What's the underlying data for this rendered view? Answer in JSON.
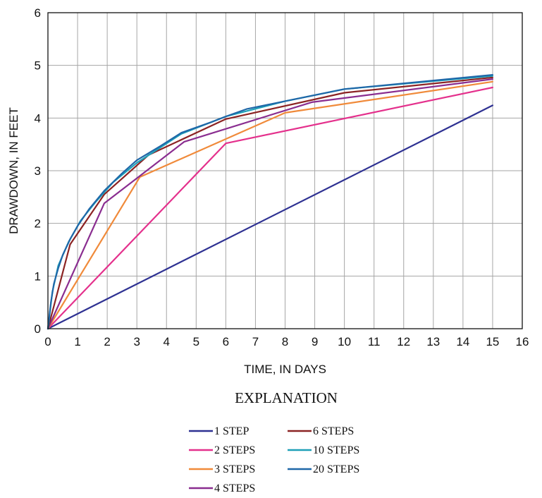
{
  "chart_data": {
    "type": "line",
    "title": "",
    "xlabel": "TIME, IN DAYS",
    "ylabel": "DRAWDOWN, IN FEET",
    "xlim": [
      0,
      16
    ],
    "ylim": [
      0,
      6
    ],
    "x_ticks": [
      0,
      1,
      2,
      3,
      4,
      5,
      6,
      7,
      8,
      9,
      10,
      11,
      12,
      13,
      14,
      15,
      16
    ],
    "y_ticks": [
      0,
      1,
      2,
      3,
      4,
      5,
      6
    ],
    "grid": true,
    "legend_title": "EXPLANATION",
    "legend_placement": "bottom",
    "series": [
      {
        "name": "1 STEP",
        "color": "#2e3192",
        "points": [
          [
            0,
            0
          ],
          [
            15,
            4.24
          ]
        ]
      },
      {
        "name": "2 STEPS",
        "color": "#e4308c",
        "points": [
          [
            0,
            0
          ],
          [
            6,
            3.52
          ],
          [
            15,
            4.58
          ]
        ]
      },
      {
        "name": "3 STEPS",
        "color": "#f08a3a",
        "points": [
          [
            0,
            0
          ],
          [
            3.1,
            2.88
          ],
          [
            8,
            4.1
          ],
          [
            15,
            4.69
          ]
        ]
      },
      {
        "name": "4 STEPS",
        "color": "#8a2d90",
        "points": [
          [
            0,
            0
          ],
          [
            1.9,
            2.38
          ],
          [
            4.6,
            3.55
          ],
          [
            8.9,
            4.3
          ],
          [
            15,
            4.74
          ]
        ]
      },
      {
        "name": "6 STEPS",
        "color": "#8b2323",
        "points": [
          [
            0,
            0
          ],
          [
            0.75,
            1.6
          ],
          [
            1.9,
            2.55
          ],
          [
            3.4,
            3.3
          ],
          [
            6,
            3.98
          ],
          [
            10,
            4.48
          ],
          [
            15,
            4.77
          ]
        ]
      },
      {
        "name": "10 STEPS",
        "color": "#1ea0b8",
        "points": [
          [
            0,
            0
          ],
          [
            0.15,
            0.7
          ],
          [
            0.35,
            1.2
          ],
          [
            0.7,
            1.65
          ],
          [
            1.1,
            2.05
          ],
          [
            1.6,
            2.4
          ],
          [
            2.2,
            2.78
          ],
          [
            3,
            3.15
          ],
          [
            4.5,
            3.7
          ],
          [
            6,
            4.03
          ],
          [
            8,
            4.32
          ],
          [
            10,
            4.55
          ],
          [
            15,
            4.8
          ]
        ]
      },
      {
        "name": "20 STEPS",
        "color": "#1f67a8",
        "points": [
          [
            0,
            0
          ],
          [
            0.1,
            0.5
          ],
          [
            0.2,
            0.85
          ],
          [
            0.35,
            1.15
          ],
          [
            0.5,
            1.4
          ],
          [
            0.75,
            1.7
          ],
          [
            1,
            1.95
          ],
          [
            1.4,
            2.28
          ],
          [
            1.9,
            2.62
          ],
          [
            2.5,
            2.95
          ],
          [
            3,
            3.2
          ],
          [
            3.8,
            3.47
          ],
          [
            4.5,
            3.72
          ],
          [
            5.5,
            3.92
          ],
          [
            6,
            4.03
          ],
          [
            6.7,
            4.17
          ],
          [
            8,
            4.32
          ],
          [
            10,
            4.55
          ],
          [
            15,
            4.82
          ]
        ]
      }
    ]
  }
}
